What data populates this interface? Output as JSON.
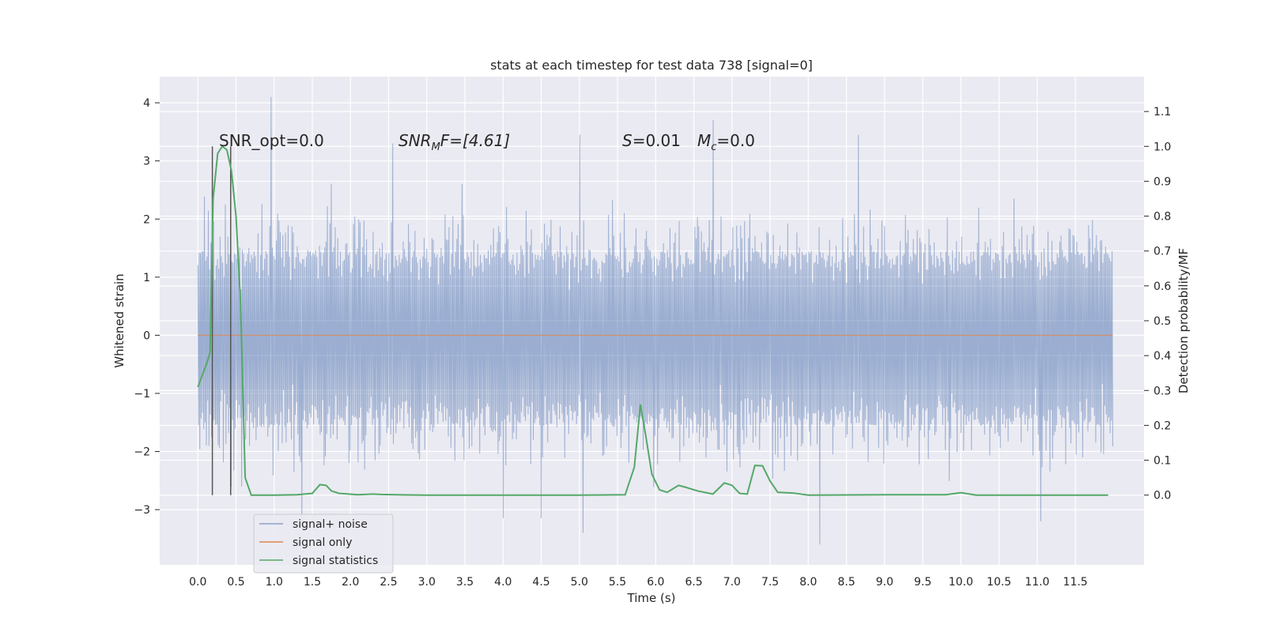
{
  "chart_data": {
    "type": "line",
    "title": "stats at each timestep for test data 738 [signal=0]",
    "xlabel": "Time (s)",
    "ylabel": "Whitened strain",
    "y2label": "Detection probability/MF",
    "xlim": [
      -0.5,
      12.4
    ],
    "ylim": [
      -3.95,
      4.45
    ],
    "y2lim": [
      -0.2,
      1.2
    ],
    "grid": true,
    "legend_position": "lower-left",
    "x_ticks": [
      "0.0",
      "0.5",
      "1.0",
      "1.5",
      "2.0",
      "2.5",
      "3.0",
      "3.5",
      "4.0",
      "4.5",
      "5.0",
      "5.5",
      "6.0",
      "6.5",
      "7.0",
      "7.5",
      "8.0",
      "8.5",
      "9.0",
      "9.5",
      "10.0",
      "10.5",
      "11.0",
      "11.5"
    ],
    "y_ticks": [
      "4",
      "3",
      "2",
      "1",
      "0",
      "−1",
      "−2",
      "−3"
    ],
    "y2_ticks": [
      "1.1",
      "1.0",
      "0.9",
      "0.8",
      "0.7",
      "0.6",
      "0.5",
      "0.4",
      "0.3",
      "0.2",
      "0.1",
      "0.0"
    ],
    "annotations": {
      "snr_opt": "SNR_opt=0.0",
      "snr_mf_name": "SNR",
      "snr_mf_sub": "M",
      "snr_mf_rest": "F=[4.61]",
      "s_name": "S",
      "s_value": "=0.01",
      "mc_name": "M",
      "mc_sub": "c",
      "mc_value": "=0.0"
    },
    "vertical_markers_x": [
      0.19,
      0.43
    ],
    "series": [
      {
        "name": "signal+ noise",
        "color": "#4c72b0",
        "description_of_values": "whitened noise, roughly uniform amplitude over the 0 to 12 s span",
        "x_range": [
          0.0,
          11.99
        ],
        "envelope_lower": -1.55,
        "envelope_upper": 1.45,
        "peak_values": [
          {
            "x": 0.95,
            "y": 4.1
          },
          {
            "x": 0.18,
            "y": 2.7
          },
          {
            "x": 2.55,
            "y": 3.3
          },
          {
            "x": 5.0,
            "y": 3.45
          },
          {
            "x": 6.75,
            "y": 3.7
          },
          {
            "x": 8.65,
            "y": 3.45
          },
          {
            "x": 1.35,
            "y": -3.3
          },
          {
            "x": 5.05,
            "y": -3.4
          },
          {
            "x": 8.15,
            "y": -3.6
          },
          {
            "x": 11.05,
            "y": -3.2
          },
          {
            "x": 4.0,
            "y": -3.15
          },
          {
            "x": 4.5,
            "y": -3.15
          }
        ]
      },
      {
        "name": "signal only",
        "color": "#dd8452",
        "x": [
          0.0,
          11.99
        ],
        "y": [
          0.0,
          0.0
        ]
      },
      {
        "name": "signal statistics",
        "color": "#55a868",
        "axis": "right",
        "x": [
          0.0,
          0.12,
          0.16,
          0.2,
          0.26,
          0.32,
          0.38,
          0.44,
          0.5,
          0.56,
          0.62,
          0.7,
          1.0,
          1.3,
          1.5,
          1.6,
          1.68,
          1.75,
          1.85,
          2.1,
          2.3,
          2.4,
          2.6,
          3.0,
          4.0,
          5.0,
          5.6,
          5.72,
          5.8,
          5.87,
          5.95,
          6.05,
          6.15,
          6.3,
          6.4,
          6.55,
          6.75,
          6.9,
          7.0,
          7.1,
          7.2,
          7.3,
          7.4,
          7.5,
          7.6,
          7.8,
          8.0,
          9.0,
          9.8,
          10.0,
          10.2,
          10.5,
          11.0,
          11.5,
          11.93
        ],
        "y": [
          0.31,
          0.38,
          0.41,
          0.85,
          0.98,
          1.0,
          0.99,
          0.93,
          0.8,
          0.55,
          0.05,
          0.0,
          0.0,
          0.001,
          0.005,
          0.03,
          0.028,
          0.012,
          0.005,
          0.001,
          0.003,
          0.002,
          0.001,
          0.0,
          0.0,
          0.0,
          0.001,
          0.08,
          0.26,
          0.17,
          0.06,
          0.015,
          0.008,
          0.028,
          0.022,
          0.012,
          0.003,
          0.035,
          0.028,
          0.005,
          0.003,
          0.085,
          0.084,
          0.04,
          0.008,
          0.006,
          0.0,
          0.001,
          0.001,
          0.007,
          0.0,
          0.0,
          0.0,
          0.0,
          0.0
        ]
      }
    ]
  }
}
